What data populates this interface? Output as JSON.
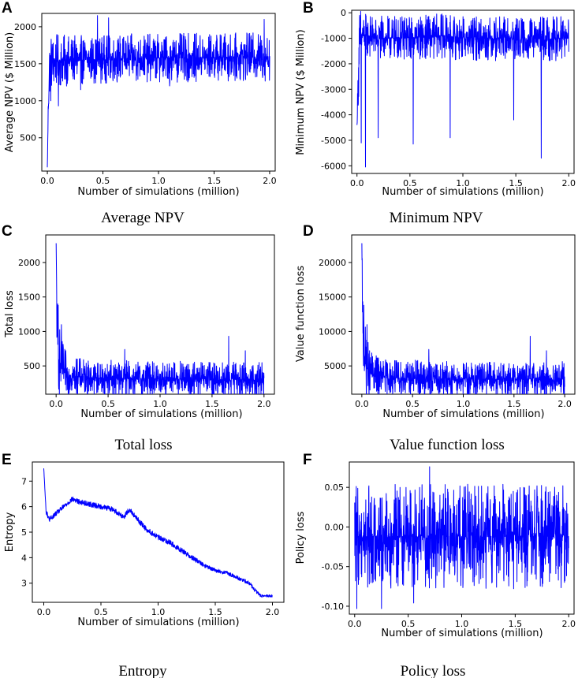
{
  "series_color": "#0000ff",
  "chart_data": [
    {
      "panel": "A",
      "caption": "Average NPV",
      "type": "line",
      "title": "",
      "xlabel": "Number of simulations (million)",
      "ylabel": "Average NPV ($ Million)",
      "xlim": [
        -0.05,
        2.05
      ],
      "ylim": [
        50,
        2180
      ],
      "xticks": [
        0.0,
        0.5,
        1.0,
        1.5,
        2.0
      ],
      "xtick_labels": [
        "0.0",
        "0.5",
        "1.0",
        "1.5",
        "2.0"
      ],
      "yticks": [
        500,
        1000,
        1500,
        2000
      ],
      "ytick_labels": [
        "500",
        "1000",
        "1500",
        "2000"
      ],
      "series": [
        {
          "name": "Average NPV",
          "x": [
            0.0,
            0.01,
            0.02,
            0.04,
            0.08,
            0.15,
            0.25,
            0.4,
            0.6,
            0.8,
            1.0,
            1.2,
            1.4,
            1.6,
            1.8,
            2.0
          ],
          "y": [
            100,
            1050,
            1480,
            1520,
            1530,
            1540,
            1550,
            1560,
            1570,
            1575,
            1580,
            1580,
            1585,
            1590,
            1590,
            1595
          ],
          "noise": [
            0,
            450,
            420,
            380,
            340,
            320,
            300,
            300,
            300,
            300,
            300,
            300,
            300,
            300,
            300,
            300
          ],
          "spikes": [
            {
              "x": 0.45,
              "y": 2150
            },
            {
              "x": 0.55,
              "y": 2120
            },
            {
              "x": 1.95,
              "y": 2100
            },
            {
              "x": 0.03,
              "y": 1000
            },
            {
              "x": 0.1,
              "y": 930
            },
            {
              "x": 0.3,
              "y": 1150
            },
            {
              "x": 1.1,
              "y": 1200
            }
          ]
        }
      ]
    },
    {
      "panel": "B",
      "caption": "Minimum NPV",
      "type": "line",
      "title": "",
      "xlabel": "Number of simulations (million)",
      "ylabel": "Minimum NPV ($ Million)",
      "xlim": [
        -0.05,
        2.05
      ],
      "ylim": [
        -6300,
        100
      ],
      "xticks": [
        0.0,
        0.5,
        1.0,
        1.5,
        2.0
      ],
      "xtick_labels": [
        "0.0",
        "0.5",
        "1.0",
        "1.5",
        "2.0"
      ],
      "yticks": [
        -6000,
        -5000,
        -4000,
        -3000,
        -2000,
        -1000,
        0
      ],
      "ytick_labels": [
        "-6000",
        "-5000",
        "-4000",
        "-3000",
        "-2000",
        "-1000",
        "0"
      ],
      "series": [
        {
          "name": "Minimum NPV",
          "x": [
            0.0,
            0.02,
            0.05,
            0.1,
            0.2,
            0.4,
            0.6,
            0.8,
            1.0,
            1.2,
            1.4,
            1.6,
            1.8,
            2.0
          ],
          "y": [
            -4400,
            -1400,
            -900,
            -900,
            -1000,
            -1000,
            -950,
            -900,
            -1000,
            -1000,
            -1000,
            -1050,
            -1000,
            -1000
          ],
          "noise": [
            0,
            1800,
            900,
            800,
            800,
            800,
            800,
            800,
            800,
            800,
            800,
            800,
            800,
            800
          ],
          "spikes": [
            {
              "x": 0.08,
              "y": -6050
            },
            {
              "x": 0.04,
              "y": -5100
            },
            {
              "x": 0.53,
              "y": -5150
            },
            {
              "x": 1.74,
              "y": -5700
            },
            {
              "x": 0.2,
              "y": -4900
            },
            {
              "x": 0.88,
              "y": -4900
            },
            {
              "x": 1.48,
              "y": -4200
            },
            {
              "x": 0.73,
              "y": -150
            },
            {
              "x": 0.45,
              "y": -200
            }
          ]
        }
      ]
    },
    {
      "panel": "C",
      "caption": "Total loss",
      "type": "line",
      "title": "",
      "xlabel": "Number of simulations (million)",
      "ylabel": "Total loss",
      "xlim": [
        -0.1,
        2.1
      ],
      "ylim": [
        90,
        2400
      ],
      "xticks": [
        0.0,
        0.5,
        1.0,
        1.5,
        2.0
      ],
      "xtick_labels": [
        "0.0",
        "0.5",
        "1.0",
        "1.5",
        "2.0"
      ],
      "yticks": [
        500,
        1000,
        1500,
        2000
      ],
      "ytick_labels": [
        "500",
        "1000",
        "1500",
        "2000"
      ],
      "series": [
        {
          "name": "Total loss",
          "x": [
            0.0,
            0.01,
            0.02,
            0.04,
            0.08,
            0.15,
            0.3,
            0.5,
            0.8,
            1.0,
            1.3,
            1.6,
            2.0
          ],
          "y": [
            2280,
            900,
            700,
            500,
            400,
            360,
            330,
            320,
            310,
            310,
            305,
            300,
            300
          ],
          "noise": [
            0,
            700,
            600,
            450,
            320,
            260,
            240,
            240,
            240,
            240,
            240,
            240,
            240
          ],
          "spikes": [
            {
              "x": 0.0,
              "y": 2280
            },
            {
              "x": 0.02,
              "y": 1380
            },
            {
              "x": 0.05,
              "y": 1100
            },
            {
              "x": 0.66,
              "y": 740
            },
            {
              "x": 1.66,
              "y": 930
            },
            {
              "x": 1.82,
              "y": 720
            },
            {
              "x": 0.15,
              "y": 150
            }
          ]
        }
      ]
    },
    {
      "panel": "D",
      "caption": "Value function loss",
      "type": "line",
      "title": "",
      "xlabel": "Number of simulations (million)",
      "ylabel": "Value function loss",
      "xlim": [
        -0.1,
        2.1
      ],
      "ylim": [
        900,
        24000
      ],
      "xticks": [
        0.0,
        0.5,
        1.0,
        1.5,
        2.0
      ],
      "xtick_labels": [
        "0.0",
        "0.5",
        "1.0",
        "1.5",
        "2.0"
      ],
      "yticks": [
        5000,
        10000,
        15000,
        20000
      ],
      "ytick_labels": [
        "5000",
        "10000",
        "15000",
        "20000"
      ],
      "series": [
        {
          "name": "Value function loss",
          "x": [
            0.0,
            0.01,
            0.02,
            0.04,
            0.08,
            0.15,
            0.3,
            0.5,
            0.8,
            1.0,
            1.3,
            1.6,
            2.0
          ],
          "y": [
            22800,
            9000,
            7000,
            5000,
            4000,
            3600,
            3300,
            3200,
            3100,
            3100,
            3050,
            3000,
            3000
          ],
          "noise": [
            0,
            7000,
            6000,
            4500,
            3200,
            2600,
            2400,
            2400,
            2400,
            2400,
            2400,
            2400,
            2400
          ],
          "spikes": [
            {
              "x": 0.0,
              "y": 22800
            },
            {
              "x": 0.02,
              "y": 13800
            },
            {
              "x": 0.05,
              "y": 11000
            },
            {
              "x": 0.66,
              "y": 7400
            },
            {
              "x": 1.66,
              "y": 9300
            },
            {
              "x": 1.82,
              "y": 7200
            },
            {
              "x": 0.15,
              "y": 1500
            }
          ]
        }
      ]
    },
    {
      "panel": "E",
      "caption": "Entropy",
      "type": "line",
      "title": "",
      "xlabel": "Number of simulations (million)",
      "ylabel": "Entropy",
      "xlim": [
        -0.1,
        2.1
      ],
      "ylim": [
        2.25,
        7.75
      ],
      "xticks": [
        0.0,
        0.5,
        1.0,
        1.5,
        2.0
      ],
      "xtick_labels": [
        "0.0",
        "0.5",
        "1.0",
        "1.5",
        "2.0"
      ],
      "yticks": [
        3,
        4,
        5,
        6,
        7
      ],
      "ytick_labels": [
        "3",
        "4",
        "5",
        "6",
        "7"
      ],
      "series": [
        {
          "name": "Entropy",
          "x": [
            0.0,
            0.02,
            0.05,
            0.1,
            0.2,
            0.25,
            0.3,
            0.4,
            0.5,
            0.6,
            0.7,
            0.75,
            0.8,
            0.9,
            1.0,
            1.1,
            1.2,
            1.3,
            1.4,
            1.5,
            1.6,
            1.7,
            1.8,
            1.85,
            1.9,
            2.0
          ],
          "y": [
            7.5,
            5.8,
            5.5,
            5.7,
            6.1,
            6.3,
            6.2,
            6.1,
            6.0,
            5.9,
            5.6,
            5.9,
            5.6,
            5.1,
            4.8,
            4.6,
            4.3,
            4.0,
            3.7,
            3.5,
            3.4,
            3.2,
            3.0,
            2.7,
            2.5,
            2.5
          ],
          "noise": [
            0,
            0.2,
            0.18,
            0.2,
            0.2,
            0.2,
            0.2,
            0.2,
            0.2,
            0.2,
            0.2,
            0.2,
            0.2,
            0.2,
            0.2,
            0.2,
            0.2,
            0.2,
            0.15,
            0.15,
            0.15,
            0.15,
            0.15,
            0.15,
            0.1,
            0.1
          ],
          "spikes": []
        }
      ]
    },
    {
      "panel": "F",
      "caption": "Policy loss",
      "type": "line",
      "title": "",
      "xlabel": "Number of simulations (million)",
      "ylabel": "Policy loss",
      "xlim": [
        -0.05,
        2.05
      ],
      "ylim": [
        -0.11,
        0.082
      ],
      "xticks": [
        0.0,
        0.5,
        1.0,
        1.5,
        2.0
      ],
      "xtick_labels": [
        "0.0",
        "0.5",
        "1.0",
        "1.5",
        "2.0"
      ],
      "yticks": [
        -0.1,
        -0.05,
        0.0,
        0.05
      ],
      "ytick_labels": [
        "-0.10",
        "-0.05",
        "0.00",
        "0.05"
      ],
      "series": [
        {
          "name": "Policy loss",
          "x": [
            0.0,
            0.5,
            1.0,
            1.5,
            2.0
          ],
          "y": [
            -0.012,
            -0.012,
            -0.012,
            -0.012,
            -0.012
          ],
          "noise": [
            0.06,
            0.06,
            0.06,
            0.06,
            0.06
          ],
          "spikes": [
            {
              "x": 0.7,
              "y": 0.076
            },
            {
              "x": 0.02,
              "y": -0.103
            },
            {
              "x": 0.25,
              "y": -0.103
            },
            {
              "x": 0.55,
              "y": -0.096
            },
            {
              "x": 0.48,
              "y": 0.05
            },
            {
              "x": 1.58,
              "y": 0.05
            },
            {
              "x": 1.96,
              "y": -0.07
            }
          ]
        }
      ]
    }
  ]
}
